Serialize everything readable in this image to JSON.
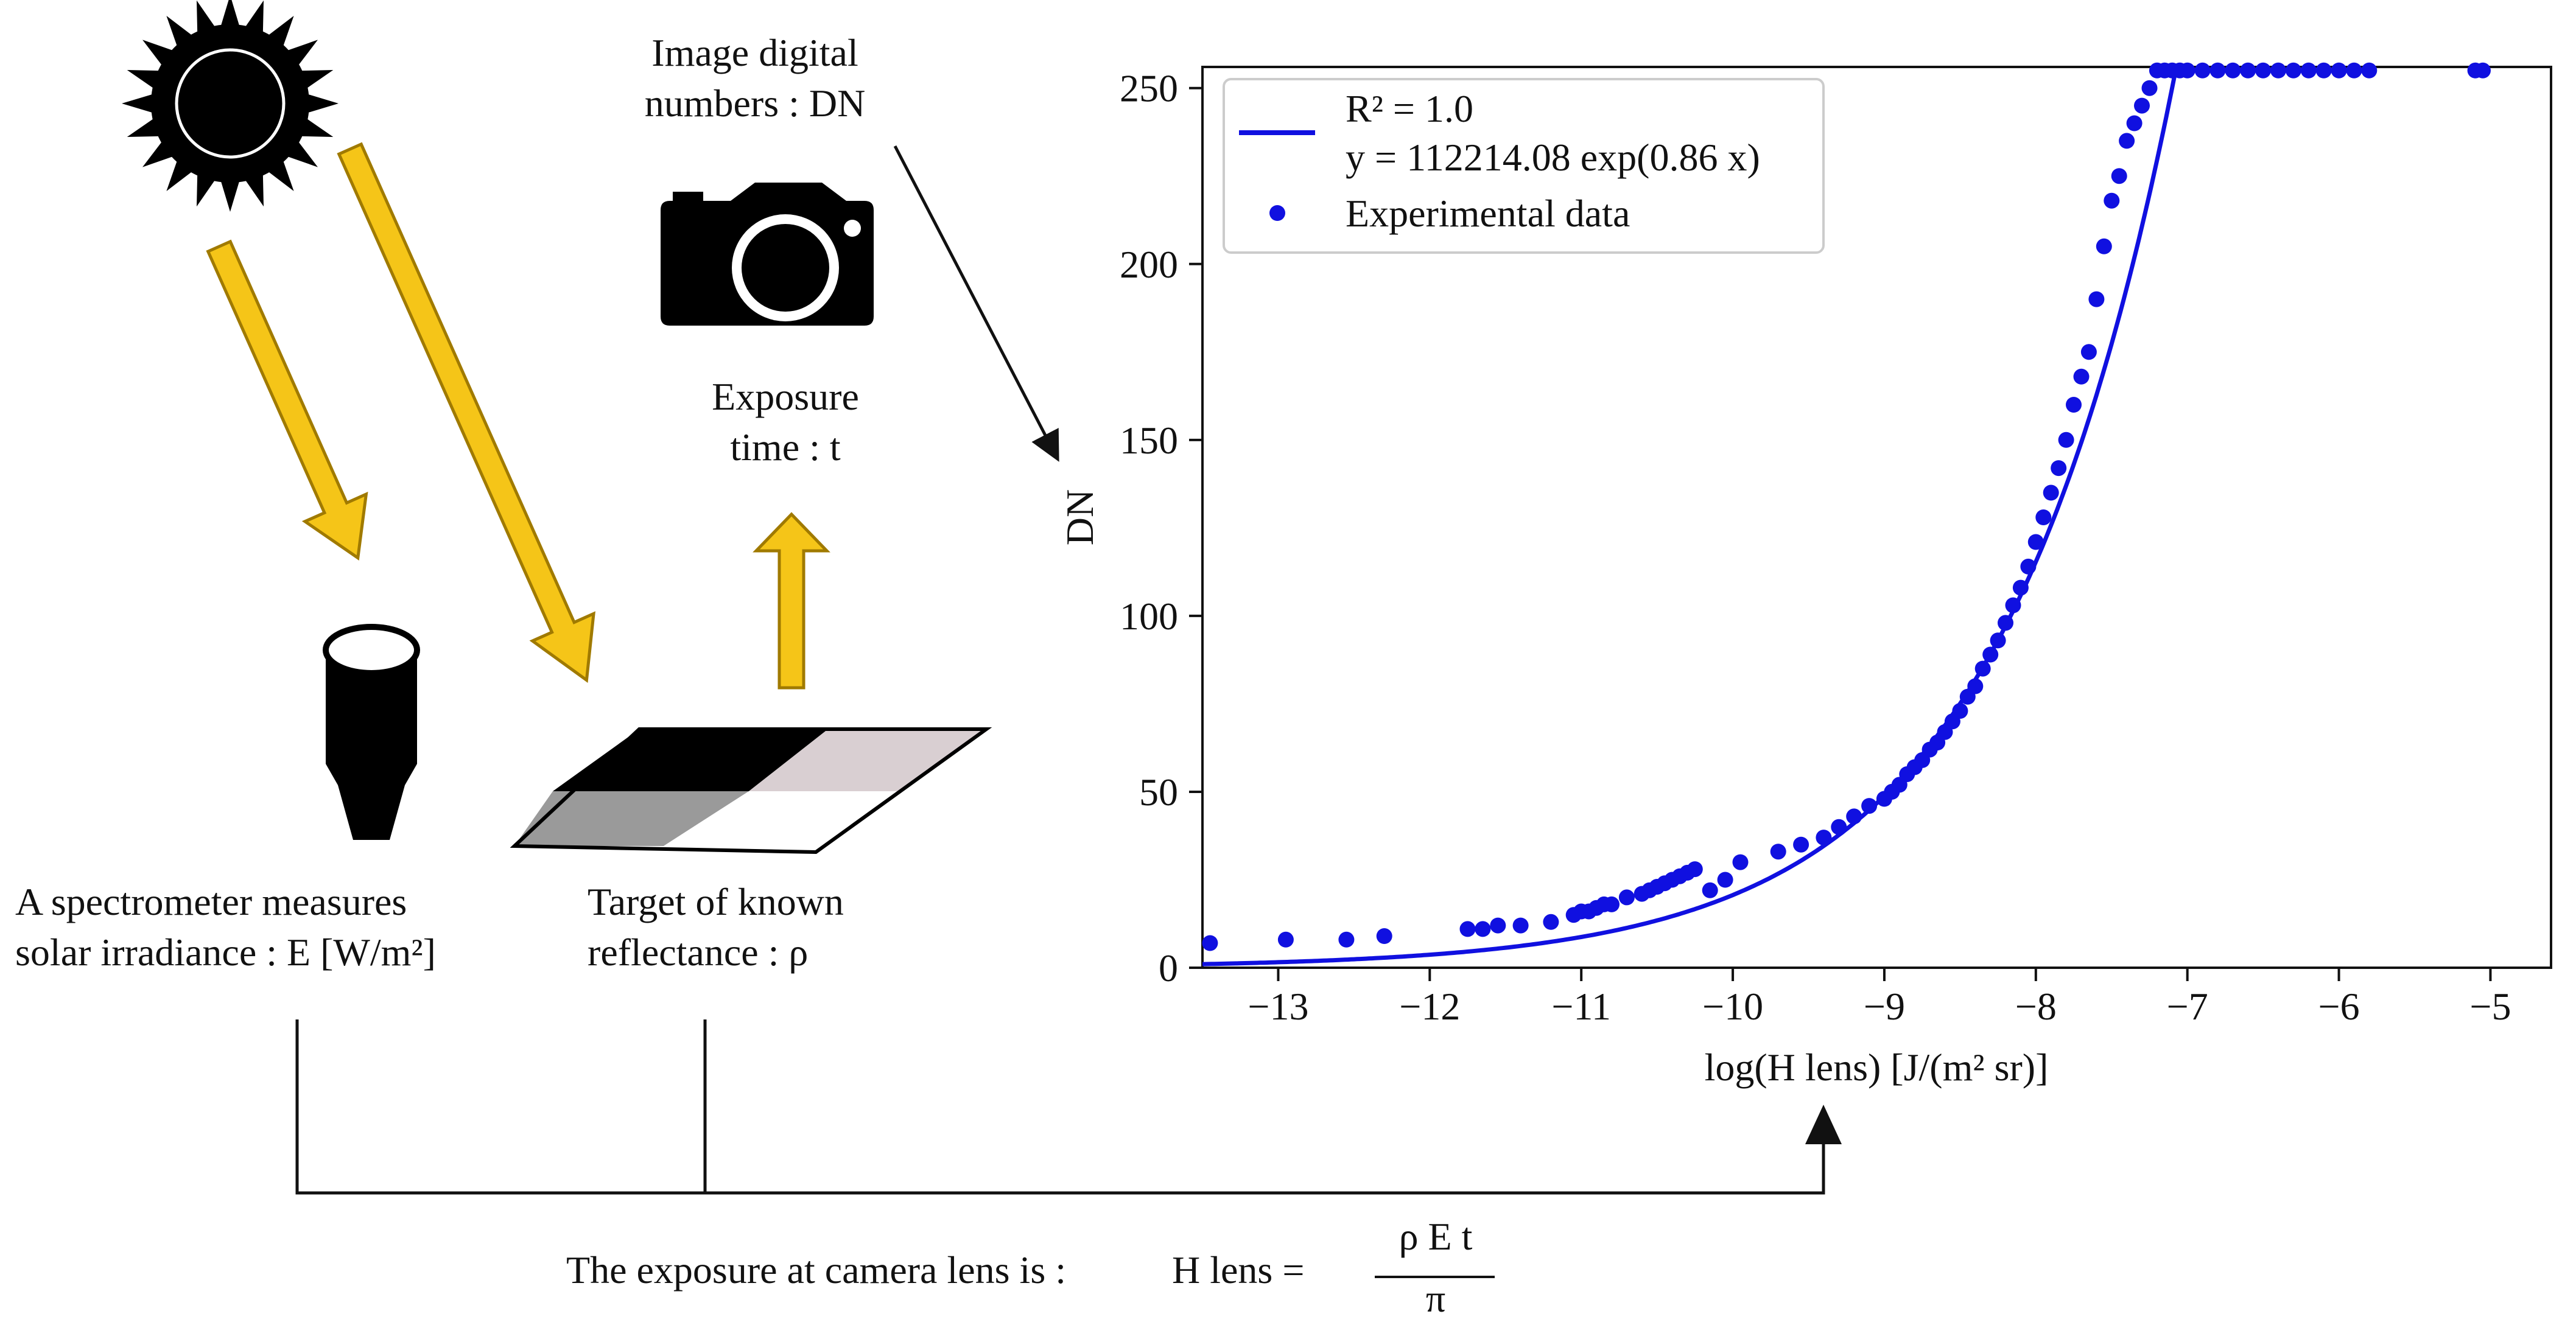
{
  "labels": {
    "dn_title_1": "Image digital",
    "dn_title_2": "numbers : DN",
    "exposure_time_1": "Exposure",
    "exposure_time_2": "time : t",
    "spectrometer_1": "A spectrometer measures",
    "spectrometer_2": "solar irradiance : E [W/m²]",
    "target_1": "Target of known",
    "target_2": "reflectance : ρ",
    "formula_prefix": "The exposure at camera lens is :",
    "formula_lhs": "H lens =",
    "formula_numerator": "ρ  E  t",
    "formula_denominator": "π"
  },
  "icons": {
    "sun": "sun-icon",
    "camera": "camera-icon",
    "spectrometer": "spectrometer-icon",
    "target": "reflectance-target-icon"
  },
  "colors": {
    "arrow_fill": "#f5c518",
    "arrow_stroke": "#a07a00",
    "series": "#1010e0",
    "target_black": "#000000",
    "target_grey": "#9a9a9a",
    "target_light": "#d9cfd2",
    "target_white": "#ffffff"
  },
  "chart_data": {
    "type": "scatter",
    "title": "",
    "xlabel": "log(H lens) [J/(m²  sr)]",
    "ylabel": "DN",
    "xlim": [
      -13.5,
      -4.6
    ],
    "ylim": [
      0,
      256
    ],
    "xticks": [
      -13,
      -12,
      -11,
      -10,
      -9,
      -8,
      -7,
      -6,
      -5
    ],
    "xtick_labels": [
      "−13",
      "−12",
      "−11",
      "−10",
      "−9",
      "−8",
      "−7",
      "−6",
      "−5"
    ],
    "yticks": [
      0,
      50,
      100,
      150,
      200,
      250
    ],
    "ytick_labels": [
      "0",
      "50",
      "100",
      "150",
      "200",
      "250"
    ],
    "legend_position": "top-left",
    "fit": {
      "name": "fit",
      "legend_line1": "R² = 1.0",
      "legend_line2": "y = 112214.08  exp(0.86 x)",
      "a": 112214.08,
      "b": 0.86,
      "cap": 255
    },
    "series": [
      {
        "name": "Experimental data",
        "x": [
          -13.45,
          -12.95,
          -12.55,
          -12.3,
          -11.75,
          -11.65,
          -11.55,
          -11.4,
          -11.2,
          -11.05,
          -11.0,
          -10.95,
          -10.9,
          -10.85,
          -10.8,
          -10.7,
          -10.6,
          -10.55,
          -10.5,
          -10.45,
          -10.4,
          -10.35,
          -10.3,
          -10.25,
          -10.15,
          -10.05,
          -9.95,
          -9.7,
          -9.55,
          -9.4,
          -9.3,
          -9.2,
          -9.1,
          -9.0,
          -8.95,
          -8.9,
          -8.85,
          -8.8,
          -8.75,
          -8.7,
          -8.65,
          -8.6,
          -8.55,
          -8.5,
          -8.45,
          -8.4,
          -8.35,
          -8.3,
          -8.25,
          -8.2,
          -8.15,
          -8.1,
          -8.05,
          -8.0,
          -7.95,
          -7.9,
          -7.85,
          -7.8,
          -7.75,
          -7.7,
          -7.65,
          -7.6,
          -7.55,
          -7.5,
          -7.45,
          -7.4,
          -7.35,
          -7.3,
          -7.25,
          -7.2,
          -7.15,
          -7.1,
          -7.05,
          -7.0,
          -6.9,
          -6.8,
          -6.7,
          -6.6,
          -6.5,
          -6.4,
          -6.3,
          -6.2,
          -6.1,
          -6.0,
          -5.9,
          -5.8,
          -5.1,
          -5.05
        ],
        "y": [
          7,
          8,
          8,
          9,
          11,
          11,
          12,
          12,
          13,
          15,
          16,
          16,
          17,
          18,
          18,
          20,
          21,
          22,
          23,
          24,
          25,
          26,
          27,
          28,
          22,
          25,
          30,
          33,
          35,
          37,
          40,
          43,
          46,
          48,
          50,
          52,
          55,
          57,
          59,
          62,
          64,
          67,
          70,
          73,
          77,
          80,
          85,
          89,
          93,
          98,
          103,
          108,
          114,
          121,
          128,
          135,
          142,
          150,
          160,
          168,
          175,
          190,
          205,
          218,
          225,
          235,
          240,
          245,
          250,
          255,
          255,
          255,
          255,
          255,
          255,
          255,
          255,
          255,
          255,
          255,
          255,
          255,
          255,
          255,
          255,
          255,
          255,
          255
        ]
      }
    ]
  }
}
